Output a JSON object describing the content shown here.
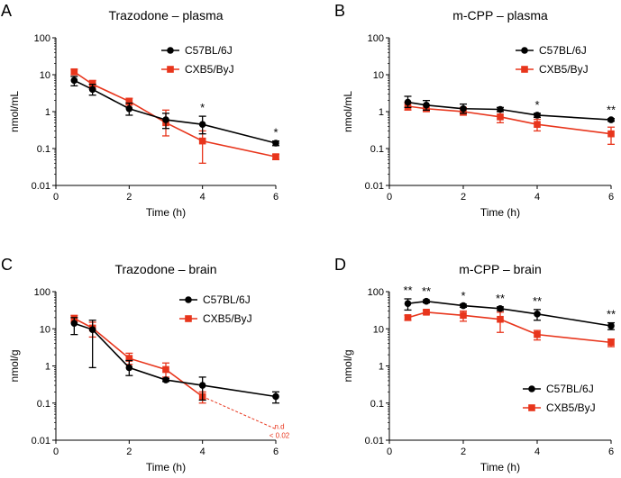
{
  "figure": {
    "xlabel": "Time (h)",
    "series_names": [
      "C57BL/6J",
      "CXB5/ByJ"
    ],
    "colors": {
      "C57BL/6J": "#000000",
      "CXB5/ByJ": "#e8351c"
    }
  },
  "chart_data": [
    {
      "panel_letter": "A",
      "type": "line",
      "title": "Trazodone – plasma",
      "xlabel": "Time (h)",
      "ylabel": "nmol/mL",
      "xlim": [
        0,
        6
      ],
      "xticks": [
        0,
        2,
        4,
        6
      ],
      "ylim": [
        0.01,
        100
      ],
      "yscale": "log",
      "yticklabels": [
        "0.01",
        "0.1",
        "1",
        "10",
        "100"
      ],
      "legend_position": "top-right",
      "series": [
        {
          "name": "C57BL/6J",
          "color": "#000000",
          "marker": "circle",
          "x": [
            0.5,
            1,
            2,
            3,
            4,
            6
          ],
          "y": [
            7.0,
            4.0,
            1.2,
            0.6,
            0.45,
            0.14
          ],
          "err_low": [
            5.0,
            2.8,
            0.8,
            0.35,
            0.25,
            0.12
          ],
          "err_high": [
            9.0,
            5.5,
            1.7,
            0.9,
            0.75,
            0.16
          ]
        },
        {
          "name": "CXB5/ByJ",
          "color": "#e8351c",
          "marker": "square",
          "x": [
            0.5,
            1,
            2,
            3,
            4,
            6
          ],
          "y": [
            12.0,
            5.5,
            1.9,
            0.5,
            0.16,
            0.06
          ],
          "err_low": [
            10.0,
            4.0,
            1.5,
            0.22,
            0.04,
            0.05
          ],
          "err_high": [
            14.0,
            7.0,
            2.3,
            1.1,
            0.3,
            0.07
          ]
        }
      ],
      "annotations": [
        {
          "x": 4,
          "text": "*"
        },
        {
          "x": 6,
          "text": "*"
        }
      ]
    },
    {
      "panel_letter": "B",
      "type": "line",
      "title": "m-CPP – plasma",
      "xlabel": "Time (h)",
      "ylabel": "nmol/mL",
      "xlim": [
        0,
        6
      ],
      "xticks": [
        0,
        2,
        4,
        6
      ],
      "ylim": [
        0.01,
        100
      ],
      "yscale": "log",
      "yticklabels": [
        "0.01",
        "0.1",
        "1",
        "10",
        "100"
      ],
      "legend_position": "top-right",
      "series": [
        {
          "name": "C57BL/6J",
          "color": "#000000",
          "marker": "circle",
          "x": [
            0.5,
            1,
            2,
            3,
            4,
            6
          ],
          "y": [
            1.8,
            1.5,
            1.2,
            1.15,
            0.8,
            0.6
          ],
          "err_low": [
            1.3,
            1.1,
            0.9,
            1.0,
            0.7,
            0.55
          ],
          "err_high": [
            2.6,
            2.0,
            1.6,
            1.3,
            0.9,
            0.65
          ]
        },
        {
          "name": "CXB5/ByJ",
          "color": "#e8351c",
          "marker": "square",
          "x": [
            0.5,
            1,
            2,
            3,
            4,
            6
          ],
          "y": [
            1.4,
            1.2,
            1.0,
            0.72,
            0.45,
            0.25
          ],
          "err_low": [
            1.1,
            1.0,
            0.8,
            0.5,
            0.3,
            0.13
          ],
          "err_high": [
            1.8,
            1.5,
            1.3,
            1.0,
            0.62,
            0.38
          ]
        }
      ],
      "annotations": [
        {
          "x": 4,
          "text": "*"
        },
        {
          "x": 6,
          "text": "**"
        }
      ]
    },
    {
      "panel_letter": "C",
      "type": "line",
      "title": "Trazodone – brain",
      "xlabel": "Time (h)",
      "ylabel": "nmol/g",
      "xlim": [
        0,
        6
      ],
      "xticks": [
        0,
        2,
        4,
        6
      ],
      "ylim": [
        0.01,
        100
      ],
      "yscale": "log",
      "yticklabels": [
        "0.01",
        "0.1",
        "1",
        "10",
        "100"
      ],
      "legend_position": "top-right",
      "series": [
        {
          "name": "C57BL/6J",
          "color": "#000000",
          "marker": "circle",
          "x": [
            0.5,
            1,
            2,
            3,
            4,
            6
          ],
          "y": [
            14.0,
            9.5,
            0.9,
            0.42,
            0.3,
            0.15
          ],
          "err_low": [
            7.0,
            0.9,
            0.55,
            0.38,
            0.12,
            0.1
          ],
          "err_high": [
            20.0,
            17.0,
            1.4,
            0.46,
            0.5,
            0.2
          ]
        },
        {
          "name": "CXB5/ByJ",
          "color": "#e8351c",
          "marker": "square",
          "x": [
            0.5,
            1,
            2,
            3,
            4
          ],
          "y": [
            19.0,
            10.5,
            1.6,
            0.8,
            0.15
          ],
          "err_low": [
            15.0,
            6.0,
            1.1,
            0.5,
            0.1
          ],
          "err_high": [
            23.0,
            15.0,
            2.2,
            1.2,
            0.2
          ]
        }
      ],
      "extrapolation": {
        "series": "CXB5/ByJ",
        "from": [
          4,
          0.15
        ],
        "to": [
          6,
          0.02
        ],
        "style": "dashed"
      },
      "annotation_nd": {
        "line1": "n.d",
        "line2": "< 0.02"
      }
    },
    {
      "panel_letter": "D",
      "type": "line",
      "title": "m-CPP – brain",
      "xlabel": "Time (h)",
      "ylabel": "nmol/g",
      "xlim": [
        0,
        6
      ],
      "xticks": [
        0,
        2,
        4,
        6
      ],
      "ylim": [
        0.01,
        100
      ],
      "yscale": "log",
      "yticklabels": [
        "0.01",
        "0.1",
        "1",
        "10",
        "100"
      ],
      "legend_position": "bottom-right",
      "series": [
        {
          "name": "C57BL/6J",
          "color": "#000000",
          "marker": "circle",
          "x": [
            0.5,
            1,
            2,
            3,
            4,
            6
          ],
          "y": [
            48.0,
            55.0,
            42.0,
            35.0,
            25.0,
            12.0
          ],
          "err_low": [
            32.0,
            50.0,
            38.0,
            31.0,
            17.0,
            9.5
          ],
          "err_high": [
            64.0,
            60.0,
            46.0,
            39.0,
            33.0,
            14.5
          ]
        },
        {
          "name": "CXB5/ByJ",
          "color": "#e8351c",
          "marker": "square",
          "x": [
            0.5,
            1,
            2,
            3,
            4,
            6
          ],
          "y": [
            20.0,
            28.0,
            23.0,
            18.0,
            7.0,
            4.3
          ],
          "err_low": [
            17.0,
            25.0,
            16.0,
            8.0,
            5.0,
            3.3
          ],
          "err_high": [
            23.0,
            31.0,
            30.0,
            28.0,
            9.0,
            5.3
          ]
        }
      ],
      "annotations": [
        {
          "x": 0.5,
          "text": "**"
        },
        {
          "x": 1,
          "text": "**"
        },
        {
          "x": 2,
          "text": "*"
        },
        {
          "x": 3,
          "text": "**"
        },
        {
          "x": 4,
          "text": "**"
        },
        {
          "x": 6,
          "text": "**"
        }
      ]
    }
  ]
}
